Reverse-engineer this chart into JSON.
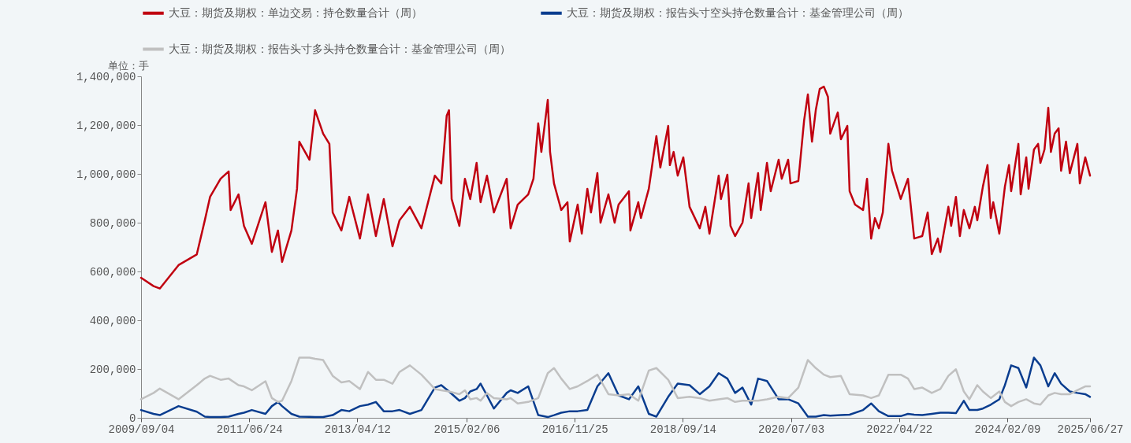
{
  "chart_data": {
    "type": "line",
    "ylim": [
      0,
      1400000
    ],
    "yticks": [
      0,
      {
        "value": 200000,
        "label": "200,000"
      },
      {
        "value": 400000,
        "label": "400,000"
      },
      {
        "value": 600000,
        "label": "600,000"
      },
      {
        "value": 800000,
        "label": "800,000"
      },
      {
        "value": 1000000,
        "label": "1,000,000"
      },
      {
        "value": 1200000,
        "label": "1,200,000"
      },
      {
        "value": 1400000,
        "label": "1,400,000"
      }
    ],
    "xlim": [
      "2009-09-04",
      "2025-06-27"
    ],
    "xticks": [
      {
        "value": "2009-09-04",
        "label": "2009/09/04"
      },
      {
        "value": "2011-06-24",
        "label": "2011/06/24"
      },
      {
        "value": "2013-04-12",
        "label": "2013/04/12"
      },
      {
        "value": "2015-02-06",
        "label": "2015/02/06"
      },
      {
        "value": "2016-11-25",
        "label": "2016/11/25"
      },
      {
        "value": "2018-09-14",
        "label": "2018/09/14"
      },
      {
        "value": "2020-07-03",
        "label": "2020/07/03"
      },
      {
        "value": "2022-04-22",
        "label": "2022/04/22"
      },
      {
        "value": "2024-02-09",
        "label": "2024/02/09"
      },
      {
        "value": "2025-06-27",
        "label": "2025/06/27"
      }
    ],
    "legend": "top left",
    "grid": false,
    "marker": "none",
    "annotations": [
      "单位：手"
    ],
    "series": [
      {
        "name": "大豆：期货及期权：单边交易：持仓数量合计（周）",
        "color": "#c00010",
        "x": [
          "2009-09-04",
          "2009-11-19",
          "2009-12-27",
          "2010-04-20",
          "2010-08-09",
          "2010-09-27",
          "2010-10-29",
          "2011-01-01",
          "2011-02-19",
          "2011-03-03",
          "2011-04-20",
          "2011-05-23",
          "2011-07-10",
          "2011-10-01",
          "2011-11-09",
          "2011-12-16",
          "2012-01-10",
          "2012-03-07",
          "2012-04-10",
          "2012-04-24",
          "2012-06-25",
          "2012-07-29",
          "2012-09-16",
          "2012-10-24",
          "2012-11-13",
          "2013-01-05",
          "2013-02-22",
          "2013-04-28",
          "2013-06-16",
          "2013-08-03",
          "2013-09-20",
          "2013-11-12",
          "2013-12-25",
          "2014-02-26",
          "2014-05-07",
          "2014-07-28",
          "2014-09-05",
          "2014-10-08",
          "2014-10-22",
          "2014-11-07",
          "2014-12-24",
          "2015-01-27",
          "2015-02-28",
          "2015-04-08",
          "2015-05-02",
          "2015-06-10",
          "2015-07-22",
          "2015-10-08",
          "2015-11-01",
          "2015-12-14",
          "2016-02-16",
          "2016-03-19",
          "2016-04-17",
          "2016-05-06",
          "2016-06-14",
          "2016-06-28",
          "2016-07-22",
          "2016-09-04",
          "2016-10-12",
          "2016-10-26",
          "2016-12-13",
          "2017-01-07",
          "2017-02-10",
          "2017-03-04",
          "2017-04-12",
          "2017-05-01",
          "2017-06-18",
          "2017-07-26",
          "2017-08-19",
          "2017-10-21",
          "2017-10-30",
          "2017-12-17",
          "2018-01-02",
          "2018-02-19",
          "2018-04-06",
          "2018-04-30",
          "2018-06-17",
          "2018-06-27",
          "2018-07-20",
          "2018-08-14",
          "2018-09-17",
          "2018-10-25",
          "2018-12-26",
          "2019-01-29",
          "2019-02-23",
          "2019-04-20",
          "2019-05-04",
          "2019-06-12",
          "2019-07-01",
          "2019-07-29",
          "2019-09-12",
          "2019-10-19",
          "2019-11-04",
          "2019-12-16",
          "2020-01-01",
          "2020-02-08",
          "2020-03-02",
          "2020-04-19",
          "2020-05-08",
          "2020-06-16",
          "2020-06-30",
          "2020-08-17",
          "2020-09-21",
          "2020-10-14",
          "2020-11-08",
          "2020-12-01",
          "2020-12-25",
          "2021-01-19",
          "2021-02-13",
          "2021-02-27",
          "2021-04-14",
          "2021-05-03",
          "2021-06-11",
          "2021-06-25",
          "2021-07-28",
          "2021-09-15",
          "2021-10-09",
          "2021-11-03",
          "2021-11-26",
          "2021-12-20",
          "2022-01-13",
          "2022-02-16",
          "2022-03-10",
          "2022-05-02",
          "2022-06-15",
          "2022-07-23",
          "2022-09-10",
          "2022-10-13",
          "2022-11-07",
          "2022-12-14",
          "2022-12-29",
          "2023-02-16",
          "2023-03-05",
          "2023-04-03",
          "2023-04-27",
          "2023-05-21",
          "2023-06-24",
          "2023-07-27",
          "2023-08-11",
          "2023-09-14",
          "2023-10-12",
          "2023-11-01",
          "2023-11-16",
          "2023-12-23",
          "2024-01-26",
          "2024-02-20",
          "2024-03-04",
          "2024-04-17",
          "2024-05-01",
          "2024-06-04",
          "2024-06-18",
          "2024-07-21",
          "2024-08-15",
          "2024-08-29",
          "2024-09-23",
          "2024-10-16",
          "2024-11-01",
          "2024-11-24",
          "2024-12-18",
          "2025-01-02",
          "2025-02-01",
          "2025-02-24",
          "2025-04-11",
          "2025-04-26",
          "2025-05-29",
          "2025-06-27"
        ],
        "values": [
          574000,
          540000,
          530000,
          626000,
          670000,
          810000,
          906000,
          980000,
          1010000,
          852000,
          916000,
          787000,
          713000,
          884000,
          680000,
          768000,
          639000,
          768000,
          939000,
          1132000,
          1058000,
          1261000,
          1165000,
          1123000,
          842000,
          768000,
          906000,
          735000,
          916000,
          745000,
          897000,
          703000,
          810000,
          865000,
          777000,
          993000,
          961000,
          1239000,
          1261000,
          897000,
          787000,
          980000,
          897000,
          1045000,
          884000,
          993000,
          842000,
          980000,
          777000,
          874000,
          916000,
          980000,
          1207000,
          1090000,
          1303000,
          1090000,
          961000,
          852000,
          884000,
          723000,
          874000,
          755000,
          939000,
          842000,
          1003000,
          800000,
          916000,
          800000,
          874000,
          929000,
          768000,
          884000,
          819000,
          939000,
          1155000,
          1026000,
          1197000,
          1036000,
          1090000,
          993000,
          1068000,
          865000,
          777000,
          865000,
          755000,
          993000,
          897000,
          997000,
          787000,
          745000,
          800000,
          961000,
          819000,
          1003000,
          852000,
          1045000,
          929000,
          1058000,
          980000,
          1058000,
          961000,
          971000,
          1219000,
          1326000,
          1132000,
          1261000,
          1348000,
          1358000,
          1316000,
          1165000,
          1252000,
          1142000,
          1197000,
          929000,
          874000,
          852000,
          980000,
          735000,
          819000,
          777000,
          842000,
          1123000,
          1013000,
          897000,
          980000,
          735000,
          745000,
          842000,
          671000,
          735000,
          680000,
          865000,
          787000,
          906000,
          745000,
          852000,
          777000,
          865000,
          810000,
          948000,
          1036000,
          819000,
          884000,
          755000,
          948000,
          1036000,
          929000,
          1123000,
          916000,
          1068000,
          939000,
          1100000,
          1123000,
          1045000,
          1100000,
          1271000,
          1090000,
          1165000,
          1187000,
          1013000,
          1132000,
          1003000,
          1123000,
          961000,
          1068000,
          993000
        ]
      },
      {
        "name": "大豆：期货及期权：报告头寸空头持仓数量合计：基金管理公司（周）",
        "color": "#0a3d8f",
        "x": [
          "2009-09-04",
          "2009-11-19",
          "2009-12-27",
          "2010-04-20",
          "2010-08-09",
          "2010-09-27",
          "2010-10-29",
          "2011-01-01",
          "2011-02-19",
          "2011-04-20",
          "2011-05-23",
          "2011-07-10",
          "2011-10-01",
          "2011-11-09",
          "2011-12-16",
          "2012-01-10",
          "2012-03-07",
          "2012-04-24",
          "2012-06-25",
          "2012-07-29",
          "2012-09-16",
          "2012-11-13",
          "2013-01-05",
          "2013-02-22",
          "2013-04-28",
          "2013-06-16",
          "2013-08-03",
          "2013-09-20",
          "2013-11-12",
          "2013-12-25",
          "2014-02-26",
          "2014-05-07",
          "2014-07-28",
          "2014-09-05",
          "2014-10-22",
          "2014-12-24",
          "2015-01-27",
          "2015-02-28",
          "2015-04-08",
          "2015-05-02",
          "2015-06-10",
          "2015-07-22",
          "2015-10-08",
          "2015-11-01",
          "2015-12-14",
          "2016-02-16",
          "2016-04-17",
          "2016-06-14",
          "2016-07-22",
          "2016-09-04",
          "2016-10-26",
          "2016-12-13",
          "2017-02-10",
          "2017-04-12",
          "2017-06-18",
          "2017-08-19",
          "2017-10-21",
          "2017-12-17",
          "2018-02-19",
          "2018-04-06",
          "2018-06-17",
          "2018-08-14",
          "2018-10-25",
          "2018-12-26",
          "2019-02-23",
          "2019-04-20",
          "2019-06-12",
          "2019-07-29",
          "2019-09-12",
          "2019-11-04",
          "2019-12-16",
          "2020-02-08",
          "2020-04-19",
          "2020-06-16",
          "2020-08-17",
          "2020-10-14",
          "2020-12-01",
          "2021-01-19",
          "2021-02-27",
          "2021-05-03",
          "2021-06-25",
          "2021-09-15",
          "2021-11-03",
          "2021-12-20",
          "2022-02-16",
          "2022-05-02",
          "2022-06-15",
          "2022-07-23",
          "2022-09-10",
          "2022-11-07",
          "2022-12-29",
          "2023-02-16",
          "2023-04-03",
          "2023-05-21",
          "2023-06-24",
          "2023-08-11",
          "2023-09-14",
          "2023-11-01",
          "2023-12-23",
          "2024-01-26",
          "2024-03-04",
          "2024-04-17",
          "2024-06-04",
          "2024-07-21",
          "2024-08-29",
          "2024-10-16",
          "2024-11-24",
          "2025-01-02",
          "2025-02-24",
          "2025-04-11",
          "2025-05-29",
          "2025-06-27"
        ],
        "values": [
          32000,
          16000,
          11000,
          48000,
          25000,
          5000,
          3000,
          3000,
          5000,
          16000,
          21000,
          32000,
          16000,
          48000,
          65000,
          48000,
          16000,
          5000,
          4000,
          3000,
          3000,
          11000,
          32000,
          27000,
          48000,
          54000,
          65000,
          27000,
          27000,
          32000,
          16000,
          32000,
          124000,
          134000,
          108000,
          70000,
          81000,
          108000,
          118000,
          140000,
          92000,
          38000,
          102000,
          113000,
          102000,
          129000,
          11000,
          3000,
          11000,
          21000,
          27000,
          27000,
          32000,
          129000,
          183000,
          92000,
          76000,
          129000,
          16000,
          5000,
          86000,
          140000,
          134000,
          97000,
          129000,
          183000,
          161000,
          102000,
          124000,
          54000,
          161000,
          151000,
          76000,
          76000,
          59000,
          5000,
          5000,
          11000,
          9000,
          11000,
          13000,
          32000,
          59000,
          27000,
          7000,
          7000,
          16000,
          13000,
          11000,
          16000,
          21000,
          21000,
          19000,
          70000,
          32000,
          32000,
          38000,
          54000,
          76000,
          134000,
          215000,
          204000,
          124000,
          247000,
          215000,
          129000,
          183000,
          140000,
          108000,
          102000,
          97000,
          86000
        ]
      },
      {
        "name": "大豆：期货及期权：报告头寸多头持仓数量合计：基金管理公司（周）",
        "color": "#c0c0c0",
        "x": [
          "2009-09-04",
          "2009-11-19",
          "2009-12-27",
          "2010-04-20",
          "2010-08-09",
          "2010-09-27",
          "2010-10-29",
          "2011-01-01",
          "2011-02-19",
          "2011-04-20",
          "2011-05-23",
          "2011-07-10",
          "2011-10-01",
          "2011-11-09",
          "2011-12-16",
          "2012-01-10",
          "2012-03-07",
          "2012-04-24",
          "2012-06-25",
          "2012-07-29",
          "2012-09-16",
          "2012-11-13",
          "2013-01-05",
          "2013-02-22",
          "2013-04-28",
          "2013-06-16",
          "2013-08-03",
          "2013-09-20",
          "2013-11-12",
          "2013-12-25",
          "2014-02-26",
          "2014-05-07",
          "2014-07-28",
          "2014-09-05",
          "2014-10-22",
          "2014-12-24",
          "2015-01-27",
          "2015-02-28",
          "2015-04-08",
          "2015-05-02",
          "2015-06-10",
          "2015-07-22",
          "2015-10-08",
          "2015-11-01",
          "2015-12-14",
          "2016-02-16",
          "2016-04-17",
          "2016-06-14",
          "2016-07-22",
          "2016-09-04",
          "2016-10-26",
          "2016-12-13",
          "2017-02-10",
          "2017-04-12",
          "2017-06-18",
          "2017-08-19",
          "2017-10-21",
          "2017-12-17",
          "2018-02-19",
          "2018-04-06",
          "2018-06-17",
          "2018-08-14",
          "2018-10-25",
          "2018-12-26",
          "2019-02-23",
          "2019-04-20",
          "2019-06-12",
          "2019-07-29",
          "2019-09-12",
          "2019-11-04",
          "2019-12-16",
          "2020-02-08",
          "2020-04-19",
          "2020-06-16",
          "2020-08-17",
          "2020-10-14",
          "2020-12-01",
          "2021-01-19",
          "2021-02-27",
          "2021-05-03",
          "2021-06-25",
          "2021-09-15",
          "2021-11-03",
          "2021-12-20",
          "2022-02-16",
          "2022-05-02",
          "2022-06-15",
          "2022-07-23",
          "2022-09-10",
          "2022-11-07",
          "2022-12-29",
          "2023-02-16",
          "2023-04-03",
          "2023-05-21",
          "2023-06-24",
          "2023-08-11",
          "2023-09-14",
          "2023-11-01",
          "2023-12-23",
          "2024-01-26",
          "2024-03-04",
          "2024-04-17",
          "2024-06-04",
          "2024-07-21",
          "2024-08-29",
          "2024-10-16",
          "2024-11-24",
          "2025-01-02",
          "2025-02-24",
          "2025-04-11",
          "2025-05-29",
          "2025-06-27"
        ],
        "values": [
          76000,
          102000,
          120000,
          76000,
          134000,
          161000,
          172000,
          156000,
          161000,
          134000,
          129000,
          113000,
          150000,
          81000,
          65000,
          70000,
          151000,
          247000,
          247000,
          242000,
          237000,
          172000,
          145000,
          151000,
          118000,
          188000,
          156000,
          156000,
          140000,
          188000,
          215000,
          177000,
          118000,
          113000,
          108000,
          97000,
          113000,
          76000,
          81000,
          70000,
          102000,
          81000,
          76000,
          81000,
          59000,
          65000,
          81000,
          183000,
          204000,
          161000,
          118000,
          129000,
          151000,
          177000,
          97000,
          92000,
          97000,
          70000,
          194000,
          204000,
          156000,
          81000,
          86000,
          81000,
          70000,
          76000,
          81000,
          65000,
          70000,
          70000,
          70000,
          76000,
          86000,
          81000,
          124000,
          237000,
          204000,
          177000,
          167000,
          172000,
          97000,
          92000,
          81000,
          92000,
          177000,
          177000,
          161000,
          118000,
          124000,
          102000,
          118000,
          172000,
          199000,
          108000,
          76000,
          134000,
          108000,
          81000,
          108000,
          65000,
          48000,
          65000,
          76000,
          59000,
          54000,
          92000,
          102000,
          97000,
          97000,
          113000,
          129000,
          129000
        ]
      }
    ]
  }
}
